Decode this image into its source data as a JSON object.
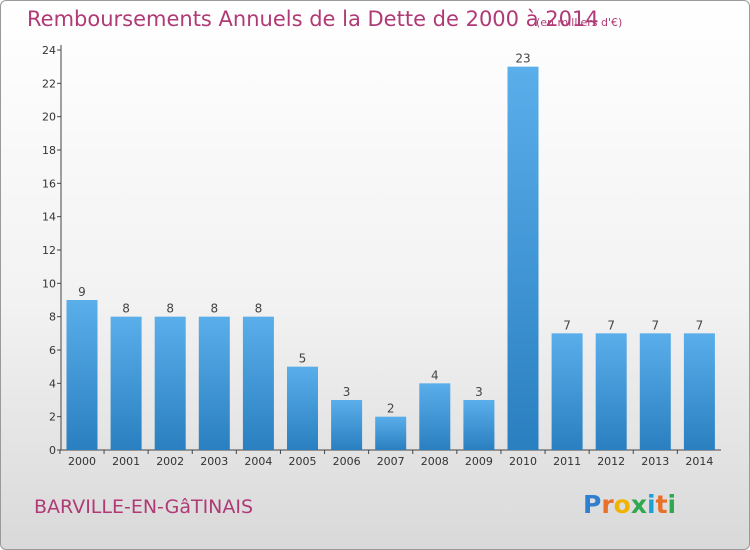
{
  "title": "Remboursements Annuels de la Dette de 2000 à 2014",
  "subtitle": "(en milliers d'€)",
  "commune": "BARVILLE-EN-GâTINAIS",
  "logo": {
    "letters": [
      "P",
      "r",
      "o",
      "x",
      "i",
      "t",
      "i"
    ],
    "colors": [
      "#2f7fd1",
      "#e8702a",
      "#f0b400",
      "#2fa84f",
      "#1d9fd7",
      "#e8702a",
      "#2fa84f"
    ]
  },
  "colors": {
    "title": "#b03a75",
    "bar_top": "#5aaeea",
    "bar_bottom": "#2a7fc0"
  },
  "chart_data": {
    "type": "bar",
    "categories": [
      "2000",
      "2001",
      "2002",
      "2003",
      "2004",
      "2005",
      "2006",
      "2007",
      "2008",
      "2009",
      "2010",
      "2011",
      "2012",
      "2013",
      "2014"
    ],
    "values": [
      9,
      8,
      8,
      8,
      8,
      5,
      3,
      2,
      4,
      3,
      23,
      7,
      7,
      7,
      7
    ],
    "title": "Remboursements Annuels de la Dette de 2000 à 2014",
    "xlabel": "",
    "ylabel": "",
    "ylim": [
      0,
      24
    ],
    "yticks": [
      0,
      2,
      4,
      6,
      8,
      10,
      12,
      14,
      16,
      18,
      20,
      22,
      24
    ],
    "grid": false,
    "legend": "none"
  }
}
